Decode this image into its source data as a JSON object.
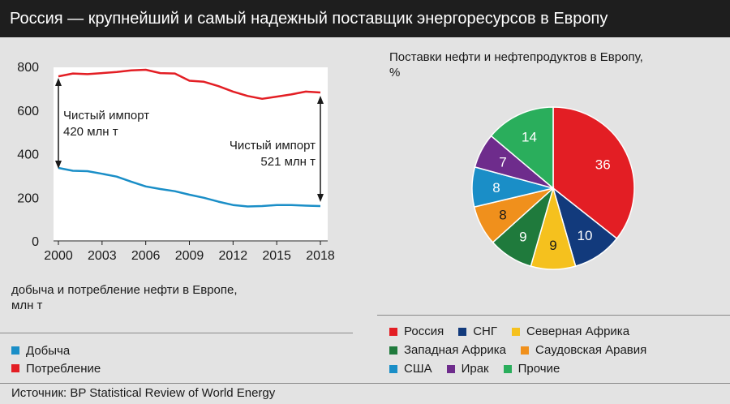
{
  "header": {
    "title": "Россия — крупнейший и самый надежный поставщик энергоресурсов в Европу"
  },
  "line_panel": {
    "subtitle_line1": "добыча и потребление нефти в Европе,",
    "subtitle_line2": "млн т",
    "annotation_left_line1": "Чистый импорт",
    "annotation_left_line2": "420 млн т",
    "annotation_right_line1": "Чистый импорт",
    "annotation_right_line2": "521 млн т"
  },
  "pie_panel": {
    "title_line1": "Поставки нефти и нефтепродуктов в Европу,",
    "title_line2": "%"
  },
  "source": {
    "text": "Источник: BP Statistical Review of World Energy"
  },
  "chart_data": [
    {
      "type": "line",
      "x": [
        2000,
        2001,
        2002,
        2003,
        2004,
        2005,
        2006,
        2007,
        2008,
        2009,
        2010,
        2011,
        2012,
        2013,
        2014,
        2015,
        2016,
        2017,
        2018
      ],
      "xticks": [
        "2000",
        "2003",
        "2006",
        "2009",
        "2012",
        "2015",
        "2018"
      ],
      "yticks": [
        "0",
        "200",
        "400",
        "600",
        "800"
      ],
      "ylim": [
        0,
        800
      ],
      "xlim": [
        2000,
        2018
      ],
      "series": [
        {
          "name": "Добыча",
          "color": "#1a8ec7",
          "values": [
            335,
            322,
            320,
            308,
            295,
            272,
            250,
            238,
            228,
            212,
            198,
            180,
            165,
            158,
            160,
            165,
            165,
            162,
            160
          ]
        },
        {
          "name": "Потребление",
          "color": "#e31e24",
          "values": [
            755,
            768,
            765,
            770,
            775,
            782,
            785,
            770,
            768,
            735,
            730,
            710,
            685,
            665,
            652,
            662,
            672,
            685,
            681
          ]
        }
      ]
    },
    {
      "type": "pie",
      "slices": [
        {
          "name": "Россия",
          "value": 36,
          "color": "#e31e24"
        },
        {
          "name": "СНГ",
          "value": 10,
          "color": "#123a7c"
        },
        {
          "name": "Северная Африка",
          "value": 9,
          "color": "#f5c11e"
        },
        {
          "name": "Западная Африка",
          "value": 9,
          "color": "#1f7a3c"
        },
        {
          "name": "Саудовская Аравия",
          "value": 8,
          "color": "#f0901c"
        },
        {
          "name": "США",
          "value": 8,
          "color": "#1a8ec7"
        },
        {
          "name": "Ирак",
          "value": 7,
          "color": "#6e2c8c"
        },
        {
          "name": "Прочие",
          "value": 14,
          "color": "#2aae5c"
        }
      ]
    }
  ]
}
